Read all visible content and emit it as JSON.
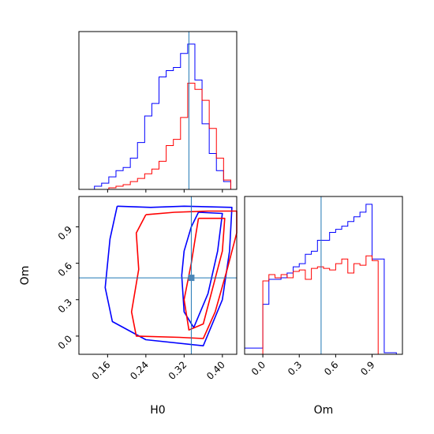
{
  "colors": {
    "series_blue": "#0000ff",
    "series_red": "#ff0000",
    "truth": "#1f77b4",
    "frame": "#000000"
  },
  "chart_data": [
    {
      "type": "histogram",
      "panel": "H0 marginal",
      "xlim": [
        0.1,
        0.43
      ],
      "ylim": [
        0,
        1
      ],
      "bins": [
        0.125,
        0.14,
        0.155,
        0.17,
        0.185,
        0.2,
        0.215,
        0.23,
        0.245,
        0.26,
        0.275,
        0.29,
        0.305,
        0.32,
        0.335,
        0.35,
        0.365,
        0.38,
        0.395,
        0.41,
        0.425
      ],
      "series": [
        {
          "color": "blue",
          "values": [
            0.0,
            0.02,
            0.04,
            0.08,
            0.12,
            0.14,
            0.2,
            0.3,
            0.47,
            0.55,
            0.72,
            0.76,
            0.78,
            0.87,
            0.93,
            0.7,
            0.42,
            0.23,
            0.12,
            0.05
          ]
        },
        {
          "color": "red",
          "values": [
            0.0,
            0.0,
            0.0,
            0.01,
            0.02,
            0.03,
            0.05,
            0.07,
            0.1,
            0.13,
            0.18,
            0.28,
            0.32,
            0.46,
            0.68,
            0.64,
            0.57,
            0.39,
            0.2,
            0.06
          ]
        }
      ],
      "truth_x": 0.33
    },
    {
      "type": "contour",
      "panel": "H0 vs Om",
      "xlabel": "H0",
      "ylabel": "Om",
      "xlim": [
        0.1,
        0.43
      ],
      "ylim": [
        -0.15,
        1.15
      ],
      "xticks": [
        "0.16",
        "0.24",
        "0.32",
        "0.40"
      ],
      "yticks": [
        "0.0",
        "0.3",
        "0.6",
        "0.9"
      ],
      "truth": {
        "x": 0.335,
        "y": 0.48
      },
      "series": [
        {
          "color": "blue",
          "level": "outer",
          "points": [
            [
              0.18,
              1.07
            ],
            [
              0.25,
              1.06
            ],
            [
              0.32,
              1.07
            ],
            [
              0.42,
              1.06
            ],
            [
              0.415,
              0.7
            ],
            [
              0.4,
              0.3
            ],
            [
              0.36,
              -0.08
            ],
            [
              0.24,
              -0.03
            ],
            [
              0.17,
              0.12
            ],
            [
              0.155,
              0.4
            ],
            [
              0.165,
              0.8
            ],
            [
              0.18,
              1.07
            ]
          ]
        },
        {
          "color": "blue",
          "level": "inner",
          "points": [
            [
              0.35,
              1.02
            ],
            [
              0.4,
              1.01
            ],
            [
              0.39,
              0.7
            ],
            [
              0.37,
              0.35
            ],
            [
              0.34,
              0.07
            ],
            [
              0.32,
              0.2
            ],
            [
              0.315,
              0.5
            ],
            [
              0.32,
              0.7
            ],
            [
              0.335,
              0.9
            ],
            [
              0.35,
              1.02
            ]
          ]
        },
        {
          "color": "red",
          "level": "outer",
          "points": [
            [
              0.24,
              1.0
            ],
            [
              0.3,
              1.02
            ],
            [
              0.37,
              1.03
            ],
            [
              0.43,
              1.03
            ],
            [
              0.43,
              0.85
            ],
            [
              0.41,
              0.55
            ],
            [
              0.385,
              0.2
            ],
            [
              0.36,
              -0.02
            ],
            [
              0.31,
              -0.01
            ],
            [
              0.22,
              0.0
            ],
            [
              0.21,
              0.2
            ],
            [
              0.225,
              0.55
            ],
            [
              0.22,
              0.85
            ],
            [
              0.24,
              1.0
            ]
          ]
        },
        {
          "color": "red",
          "level": "inner",
          "points": [
            [
              0.35,
              0.97
            ],
            [
              0.405,
              0.97
            ],
            [
              0.4,
              0.7
            ],
            [
              0.38,
              0.4
            ],
            [
              0.36,
              0.1
            ],
            [
              0.33,
              0.05
            ],
            [
              0.32,
              0.3
            ],
            [
              0.335,
              0.6
            ],
            [
              0.345,
              0.85
            ],
            [
              0.35,
              0.97
            ]
          ]
        }
      ]
    },
    {
      "type": "histogram",
      "panel": "Om marginal",
      "xlabel": "Om",
      "xlim": [
        -0.15,
        1.15
      ],
      "ylim": [
        0,
        1
      ],
      "xticks": [
        "0.0",
        "0.3",
        "0.6",
        "0.9"
      ],
      "bins": [
        -0.125,
        -0.075,
        -0.025,
        0.025,
        0.075,
        0.125,
        0.175,
        0.225,
        0.275,
        0.325,
        0.375,
        0.425,
        0.475,
        0.525,
        0.575,
        0.625,
        0.675,
        0.725,
        0.775,
        0.825,
        0.875,
        0.925,
        0.975,
        1.025,
        1.075,
        1.125
      ],
      "series": [
        {
          "color": "blue",
          "values": [
            0.04,
            0.04,
            0.04,
            0.32,
            0.48,
            0.48,
            0.49,
            0.52,
            0.56,
            0.58,
            0.64,
            0.66,
            0.73,
            0.73,
            0.78,
            0.8,
            0.82,
            0.85,
            0.88,
            0.91,
            0.96,
            0.61,
            0.61,
            0.01,
            0.01
          ]
        },
        {
          "color": "red",
          "values": [
            0.0,
            0.0,
            0.0,
            0.47,
            0.51,
            0.49,
            0.51,
            0.49,
            0.53,
            0.54,
            0.48,
            0.55,
            0.56,
            0.55,
            0.54,
            0.58,
            0.61,
            0.52,
            0.58,
            0.57,
            0.63,
            0.6,
            0.0,
            0.0,
            0.0
          ]
        }
      ],
      "truth_x": 0.48
    }
  ]
}
